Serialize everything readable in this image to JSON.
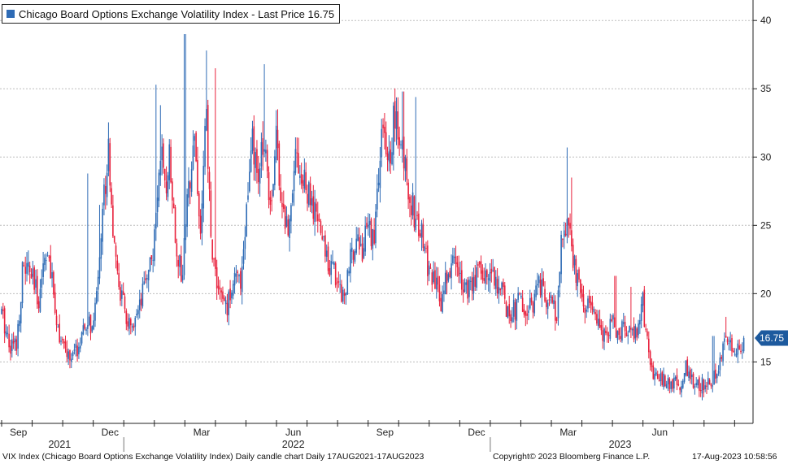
{
  "legend": {
    "label": "Chicago Board Options Exchange Volatility Index - Last Price 16.75",
    "swatch_color": "#2e6bb5"
  },
  "price_tag": "16.75",
  "footer": {
    "description": "VIX Index (Chicago Board Options Exchange Volatility Index) Daily candle chart  Daily 17AUG2021-17AUG2023",
    "copyright": "Copyright© 2023 Bloomberg Finance L.P.",
    "timestamp": "17-Aug-2023 10:58:56"
  },
  "colors": {
    "up": "#2e6bb5",
    "down": "#e8223d",
    "grid": "#bdbdbd",
    "tag": "#1d5a9e"
  },
  "chart_data": {
    "type": "candlestick",
    "title": "Chicago Board Options Exchange Volatility Index - Last Price 16.75",
    "series_name": "VIX Index",
    "frequency": "Daily",
    "range": "17AUG2021-17AUG2023",
    "last_price": 16.75,
    "ylim": [
      10.5,
      41.5
    ],
    "y_ticks": [
      15,
      20,
      25,
      30,
      35,
      40
    ],
    "y_tick_labels": [
      "15",
      "20",
      "25",
      "30",
      "35",
      "40"
    ],
    "month_labels": [
      {
        "label": "Sep",
        "month_index": 0.55
      },
      {
        "label": "Dec",
        "month_index": 3.55
      },
      {
        "label": "Mar",
        "month_index": 6.55
      },
      {
        "label": "Jun",
        "month_index": 9.55
      },
      {
        "label": "Sep",
        "month_index": 12.55
      },
      {
        "label": "Dec",
        "month_index": 15.55
      },
      {
        "label": "Mar",
        "month_index": 18.55
      },
      {
        "label": "Jun",
        "month_index": 21.55
      }
    ],
    "year_labels": [
      {
        "label": "2021",
        "month_index": 1.9
      },
      {
        "label": "2022",
        "month_index": 9.55
      },
      {
        "label": "2023",
        "month_index": 20.25
      }
    ],
    "year_separators": [
      4.0,
      16.0
    ],
    "months_span": 24.55,
    "path_points": [
      [
        0.0,
        18.5
      ],
      [
        0.3,
        16.2
      ],
      [
        0.5,
        16.5
      ],
      [
        0.7,
        22.0
      ],
      [
        0.95,
        21.5
      ],
      [
        1.2,
        19.5
      ],
      [
        1.45,
        23.5
      ],
      [
        1.7,
        20.0
      ],
      [
        1.85,
        17.5
      ],
      [
        2.0,
        16.0
      ],
      [
        2.3,
        15.2
      ],
      [
        2.6,
        16.5
      ],
      [
        2.85,
        18.0
      ],
      [
        3.0,
        17.0
      ],
      [
        3.25,
        24.5
      ],
      [
        3.5,
        31.0
      ],
      [
        3.7,
        22.5
      ],
      [
        3.9,
        20.0
      ],
      [
        4.1,
        18.0
      ],
      [
        4.3,
        17.0
      ],
      [
        4.55,
        19.0
      ],
      [
        4.75,
        21.5
      ],
      [
        5.0,
        23.5
      ],
      [
        5.2,
        31.0
      ],
      [
        5.35,
        27.0
      ],
      [
        5.5,
        30.5
      ],
      [
        5.7,
        24.0
      ],
      [
        5.9,
        21.0
      ],
      [
        6.1,
        27.0
      ],
      [
        6.3,
        32.5
      ],
      [
        6.5,
        24.0
      ],
      [
        6.7,
        33.0
      ],
      [
        6.85,
        24.0
      ],
      [
        7.0,
        21.5
      ],
      [
        7.2,
        19.5
      ],
      [
        7.4,
        19.0
      ],
      [
        7.6,
        21.5
      ],
      [
        7.8,
        20.5
      ],
      [
        8.0,
        25.5
      ],
      [
        8.2,
        31.0
      ],
      [
        8.4,
        28.0
      ],
      [
        8.6,
        32.0
      ],
      [
        8.8,
        26.5
      ],
      [
        9.0,
        31.5
      ],
      [
        9.2,
        26.0
      ],
      [
        9.4,
        24.5
      ],
      [
        9.6,
        31.0
      ],
      [
        9.8,
        28.5
      ],
      [
        10.0,
        27.5
      ],
      [
        10.2,
        26.0
      ],
      [
        10.4,
        25.0
      ],
      [
        10.6,
        23.0
      ],
      [
        10.8,
        22.0
      ],
      [
        11.0,
        21.0
      ],
      [
        11.2,
        19.8
      ],
      [
        11.4,
        22.0
      ],
      [
        11.6,
        24.5
      ],
      [
        11.8,
        23.0
      ],
      [
        12.0,
        25.0
      ],
      [
        12.2,
        24.0
      ],
      [
        12.45,
        32.0
      ],
      [
        12.65,
        29.0
      ],
      [
        12.85,
        33.0
      ],
      [
        13.0,
        31.5
      ],
      [
        13.2,
        29.5
      ],
      [
        13.4,
        27.0
      ],
      [
        13.6,
        25.0
      ],
      [
        13.8,
        24.0
      ],
      [
        14.0,
        21.5
      ],
      [
        14.2,
        20.5
      ],
      [
        14.4,
        19.5
      ],
      [
        14.6,
        21.5
      ],
      [
        14.8,
        22.5
      ],
      [
        15.0,
        21.5
      ],
      [
        15.2,
        20.5
      ],
      [
        15.4,
        20.0
      ],
      [
        15.6,
        22.5
      ],
      [
        15.8,
        21.0
      ],
      [
        16.0,
        22.0
      ],
      [
        16.2,
        21.0
      ],
      [
        16.4,
        20.0
      ],
      [
        16.6,
        18.5
      ],
      [
        16.8,
        18.8
      ],
      [
        17.0,
        19.5
      ],
      [
        17.2,
        18.2
      ],
      [
        17.4,
        19.5
      ],
      [
        17.6,
        20.5
      ],
      [
        17.8,
        20.0
      ],
      [
        18.0,
        19.0
      ],
      [
        18.2,
        18.5
      ],
      [
        18.35,
        25.0
      ],
      [
        18.55,
        24.5
      ],
      [
        18.75,
        22.0
      ],
      [
        18.95,
        20.0
      ],
      [
        19.2,
        19.0
      ],
      [
        19.4,
        18.5
      ],
      [
        19.6,
        17.2
      ],
      [
        19.8,
        16.5
      ],
      [
        20.0,
        18.0
      ],
      [
        20.2,
        17.0
      ],
      [
        20.4,
        17.5
      ],
      [
        20.6,
        16.8
      ],
      [
        20.8,
        17.5
      ],
      [
        21.0,
        19.5
      ],
      [
        21.1,
        17.0
      ],
      [
        21.25,
        14.5
      ],
      [
        21.5,
        13.8
      ],
      [
        21.75,
        13.5
      ],
      [
        22.0,
        13.5
      ],
      [
        22.2,
        13.2
      ],
      [
        22.4,
        14.5
      ],
      [
        22.55,
        13.5
      ],
      [
        22.8,
        13.4
      ],
      [
        23.0,
        13.5
      ],
      [
        23.2,
        13.6
      ],
      [
        23.45,
        14.0
      ],
      [
        23.65,
        16.5
      ],
      [
        23.85,
        16.0
      ],
      [
        24.0,
        15.5
      ],
      [
        24.15,
        16.2
      ],
      [
        24.3,
        16.75
      ]
    ],
    "spikes": [
      [
        2.8,
        28.8
      ],
      [
        3.2,
        26.5
      ],
      [
        5.05,
        35.3
      ],
      [
        5.2,
        33.8
      ],
      [
        6.0,
        39.0
      ],
      [
        6.7,
        37.8
      ],
      [
        7.0,
        36.5
      ],
      [
        8.6,
        36.8
      ],
      [
        9.05,
        33.5
      ],
      [
        13.15,
        34.8
      ],
      [
        13.55,
        34.4
      ],
      [
        18.5,
        30.7
      ],
      [
        18.65,
        28.5
      ],
      [
        20.1,
        21.3
      ],
      [
        20.6,
        20.5
      ],
      [
        23.3,
        16.9
      ],
      [
        23.7,
        18.3
      ],
      [
        3.6,
        22.0
      ]
    ]
  }
}
